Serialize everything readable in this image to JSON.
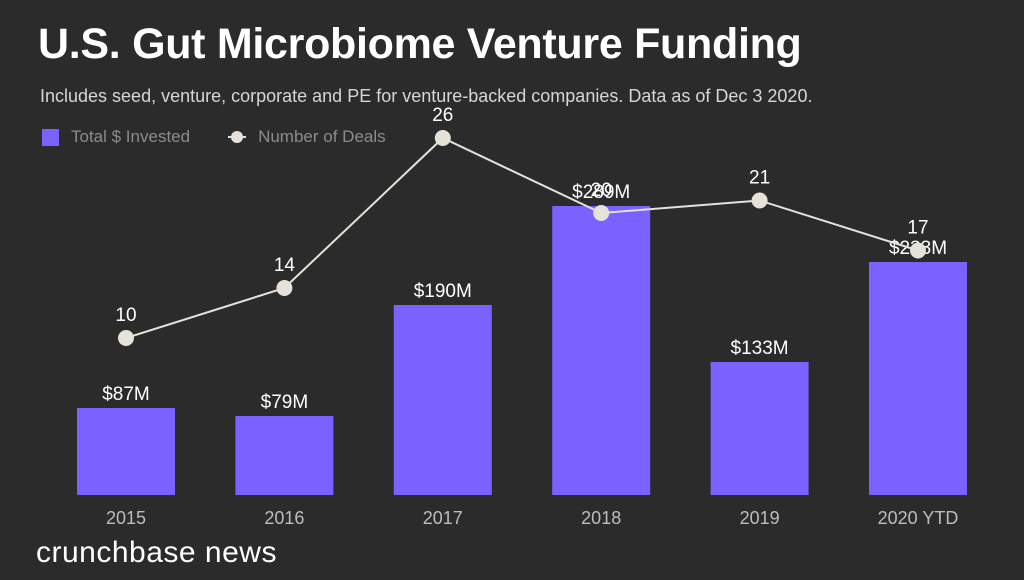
{
  "header": {
    "title": "U.S. Gut Microbiome Venture Funding",
    "subtitle": "Includes seed, venture, corporate and PE for venture-backed companies. Data as of Dec 3 2020."
  },
  "footer": {
    "brand": "crunchbase news"
  },
  "colors": {
    "background": "#2b2b2b",
    "bar": "#7b61ff",
    "line": "#e6e2da"
  },
  "chart_data": {
    "type": "bar",
    "categories": [
      "2015",
      "2016",
      "2017",
      "2018",
      "2019",
      "2020 YTD"
    ],
    "legend": {
      "placement": "top-left",
      "entries": [
        "Total $ Invested",
        "Number of Deals"
      ]
    },
    "grid": false,
    "series": [
      {
        "name": "Total $ Invested",
        "type": "bar",
        "values": [
          87,
          79,
          190,
          289,
          133,
          233
        ],
        "labels": [
          "$87M",
          "$79M",
          "$190M",
          "$289M",
          "$133M",
          "$233M"
        ],
        "ylim": [
          0,
          300
        ]
      },
      {
        "name": "Number of Deals",
        "type": "line",
        "values": [
          10,
          14,
          26,
          20,
          21,
          17
        ],
        "labels": [
          "10",
          "14",
          "26",
          "20",
          "21",
          "17"
        ],
        "ylim": [
          0,
          30
        ]
      }
    ]
  }
}
